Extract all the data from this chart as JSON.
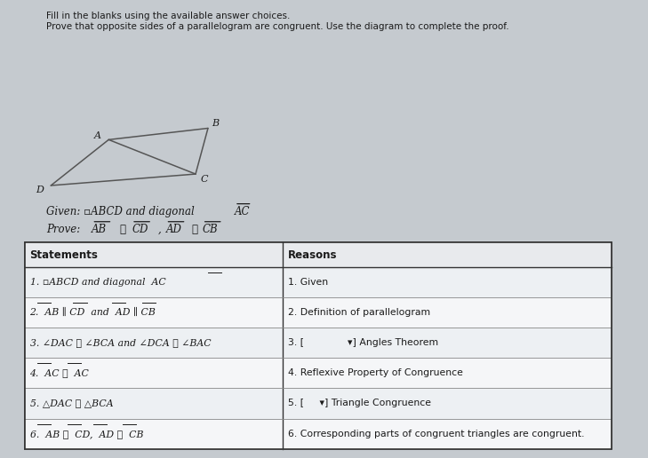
{
  "bg_color": "#c5cacf",
  "page_color": "#d4d9de",
  "title_line1": "Fill in the blanks using the available answer choices.",
  "title_line2": "Prove that opposite sides of a parallelogram are congruent. Use the diagram to complete the proof.",
  "para_A": [
    0.175,
    0.695
  ],
  "para_B": [
    0.335,
    0.72
  ],
  "para_C": [
    0.315,
    0.62
  ],
  "para_D": [
    0.082,
    0.595
  ],
  "vertex_labels": [
    "A",
    "B",
    "C",
    "D"
  ],
  "headers": [
    "Statements",
    "Reasons"
  ],
  "rows_stmt": [
    "1. ▫ABCD and diagonal  AC",
    "2.  AB ∥ CD  and  AD ∥ CB",
    "3. ∠DAC ≅ ∠BCA and ∠DCA ≅ ∠BAC",
    "4.  AC ≅  AC",
    "5. △DAC ≅ △BCA",
    "6.  AB ≅  CD,  AD ≅  CB"
  ],
  "rows_reason": [
    "1. Given",
    "2. Definition of parallelogram",
    "3. [              ▾] Angles Theorem",
    "4. Reflexive Property of Congruence",
    "5. [     ▾] Triangle Congruence",
    "6. Corresponding parts of congruent triangles are congruent."
  ],
  "font_color": "#1a1a1a",
  "line_color": "#555555",
  "table_border_color": "#333333",
  "header_bg": "#e8eaed",
  "row_bg_alt": "#edf0f3",
  "row_bg_norm": "#f5f6f8"
}
